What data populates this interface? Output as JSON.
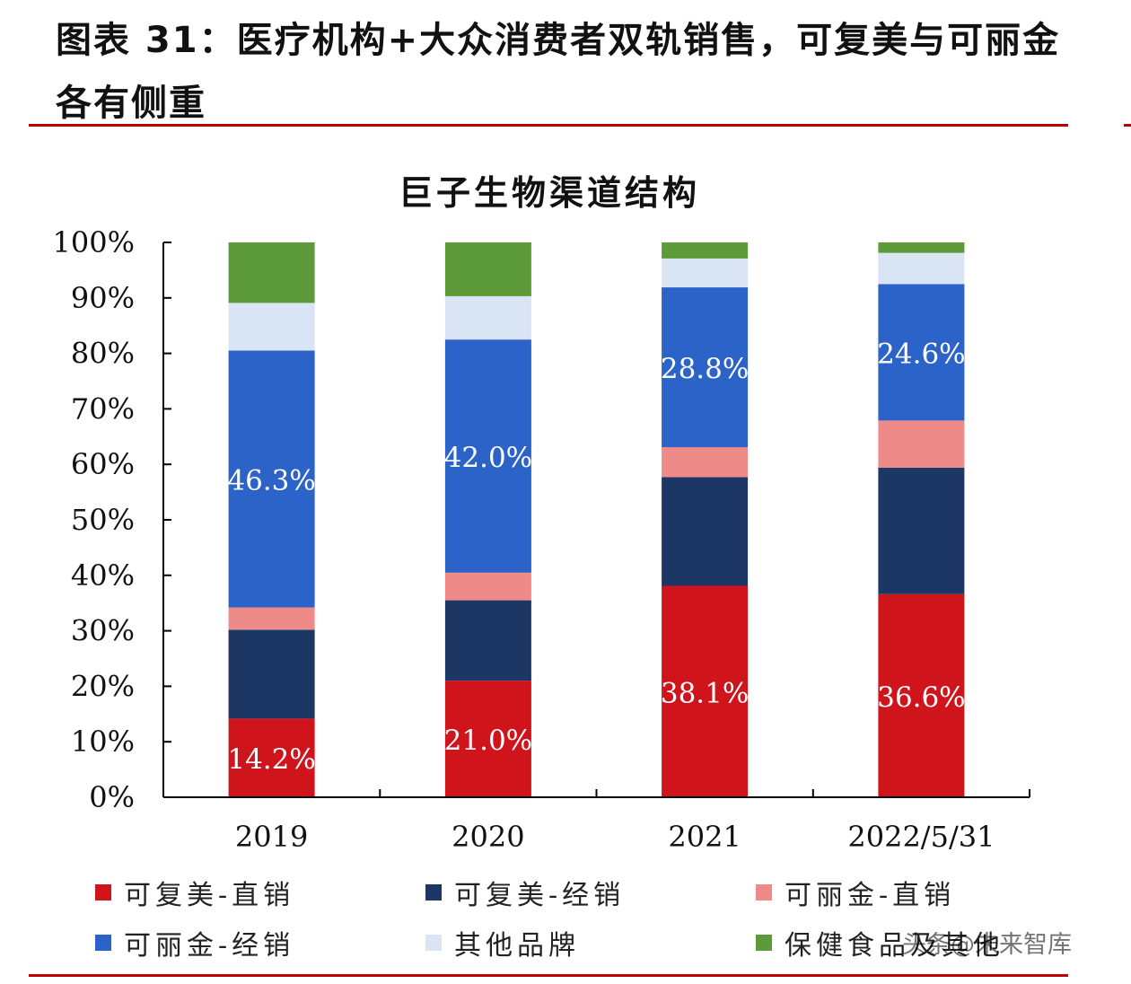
{
  "figure_title": "图表 31：医疗机构+大众消费者双轨销售，可复美与可丽金各有侧重",
  "watermark": "头条@未来智库",
  "colors": {
    "rule": "#c00000",
    "axis": "#000000",
    "label_text": "#ffffff"
  },
  "chart_data": {
    "type": "bar",
    "stacked": true,
    "percent": true,
    "title": "巨子生物渠道结构",
    "xlabel": "",
    "ylabel": "",
    "ylim": [
      0,
      100
    ],
    "yticks": [
      "0%",
      "10%",
      "20%",
      "30%",
      "40%",
      "50%",
      "60%",
      "70%",
      "80%",
      "90%",
      "100%"
    ],
    "categories": [
      "2019",
      "2020",
      "2021",
      "2022/5/31"
    ],
    "legend_position": "bottom",
    "series": [
      {
        "name": "可复美-直销",
        "color": "#d0141b",
        "values": [
          14.2,
          21.0,
          38.1,
          36.6
        ],
        "labels": [
          "14.2%",
          "21.0%",
          "38.1%",
          "36.6%"
        ]
      },
      {
        "name": "可复美-经销",
        "color": "#1c3764",
        "values": [
          16.0,
          14.5,
          19.6,
          22.8
        ],
        "labels": [
          "",
          "",
          "",
          ""
        ]
      },
      {
        "name": "可丽金-直销",
        "color": "#ee8a88",
        "values": [
          4.0,
          5.0,
          5.4,
          8.5
        ],
        "labels": [
          "",
          "",
          "",
          ""
        ]
      },
      {
        "name": "可丽金-经销",
        "color": "#2b63c9",
        "values": [
          46.3,
          42.0,
          28.8,
          24.6
        ],
        "labels": [
          "46.3%",
          "42.0%",
          "28.8%",
          "24.6%"
        ]
      },
      {
        "name": "其他品牌",
        "color": "#d9e4f5",
        "values": [
          8.6,
          7.8,
          5.2,
          5.6
        ],
        "labels": [
          "",
          "",
          "",
          ""
        ]
      },
      {
        "name": "保健食品及其他",
        "color": "#5d9b3a",
        "values": [
          10.9,
          9.7,
          2.9,
          1.9
        ],
        "labels": [
          "",
          "",
          "",
          ""
        ]
      }
    ]
  }
}
